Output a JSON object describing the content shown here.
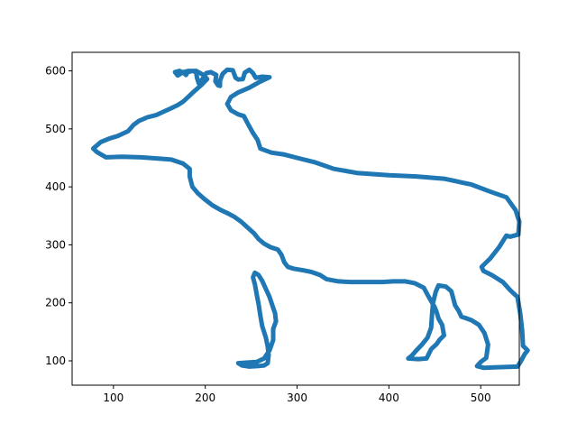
{
  "chart_data": {
    "type": "scatter",
    "title": "",
    "xlabel": "",
    "ylabel": "",
    "xlim": [
      55,
      542
    ],
    "ylim": [
      58,
      632
    ],
    "xticks": [
      100,
      200,
      300,
      400,
      500
    ],
    "yticks": [
      100,
      200,
      300,
      400,
      500,
      600
    ],
    "grid": false,
    "legend": "none",
    "series": [
      {
        "color": "#1f77b4",
        "closed": true,
        "points": [
          [
            170,
            592
          ],
          [
            167,
            598
          ],
          [
            172,
            600
          ],
          [
            176,
            597
          ],
          [
            179,
            593
          ],
          [
            181,
            598
          ],
          [
            186,
            600
          ],
          [
            190,
            598
          ],
          [
            191,
            588
          ],
          [
            193,
            578
          ],
          [
            197,
            586
          ],
          [
            201,
            596
          ],
          [
            206,
            598
          ],
          [
            212,
            593
          ],
          [
            211,
            582
          ],
          [
            214,
            575
          ],
          [
            216,
            574
          ],
          [
            216,
            583
          ],
          [
            219,
            595
          ],
          [
            224,
            602
          ],
          [
            230,
            601
          ],
          [
            233,
            588
          ],
          [
            236,
            585
          ],
          [
            241,
            586
          ],
          [
            243,
            597
          ],
          [
            248,
            602
          ],
          [
            252,
            596
          ],
          [
            255,
            588
          ],
          [
            262,
            590
          ],
          [
            270,
            589
          ],
          [
            258,
            580
          ],
          [
            248,
            571
          ],
          [
            236,
            563
          ],
          [
            228,
            555
          ],
          [
            224,
            543
          ],
          [
            228,
            532
          ],
          [
            236,
            525
          ],
          [
            242,
            522
          ],
          [
            246,
            510
          ],
          [
            252,
            493
          ],
          [
            257,
            481
          ],
          [
            260,
            466
          ],
          [
            272,
            459
          ],
          [
            285,
            456
          ],
          [
            300,
            450
          ],
          [
            320,
            442
          ],
          [
            340,
            431
          ],
          [
            365,
            424
          ],
          [
            400,
            420
          ],
          [
            430,
            418
          ],
          [
            460,
            414
          ],
          [
            490,
            404
          ],
          [
            510,
            392
          ],
          [
            528,
            382
          ],
          [
            538,
            360
          ],
          [
            542,
            340
          ],
          [
            541,
            318
          ],
          [
            532,
            314
          ],
          [
            528,
            316
          ],
          [
            520,
            296
          ],
          [
            510,
            276
          ],
          [
            501,
            262
          ],
          [
            503,
            255
          ],
          [
            512,
            248
          ],
          [
            524,
            236
          ],
          [
            532,
            222
          ],
          [
            540,
            210
          ],
          [
            543,
            182
          ],
          [
            545,
            154
          ],
          [
            546,
            126
          ],
          [
            551,
            118
          ],
          [
            548,
            112
          ],
          [
            544,
            100
          ],
          [
            540,
            90
          ],
          [
            518,
            89
          ],
          [
            503,
            88
          ],
          [
            496,
            91
          ],
          [
            500,
            98
          ],
          [
            506,
            105
          ],
          [
            508,
            128
          ],
          [
            504,
            148
          ],
          [
            498,
            162
          ],
          [
            490,
            170
          ],
          [
            483,
            174
          ],
          [
            479,
            176
          ],
          [
            476,
            186
          ],
          [
            472,
            196
          ],
          [
            470,
            208
          ],
          [
            468,
            220
          ],
          [
            462,
            228
          ],
          [
            454,
            230
          ],
          [
            451,
            219
          ],
          [
            448,
            200
          ],
          [
            447,
            180
          ],
          [
            446,
            157
          ],
          [
            442,
            140
          ],
          [
            436,
            128
          ],
          [
            430,
            118
          ],
          [
            425,
            109
          ],
          [
            421,
            104
          ],
          [
            432,
            103
          ],
          [
            441,
            104
          ],
          [
            446,
            120
          ],
          [
            452,
            129
          ],
          [
            455,
            136
          ],
          [
            460,
            144
          ],
          [
            458,
            162
          ],
          [
            454,
            173
          ],
          [
            452,
            184
          ],
          [
            450,
            192
          ],
          [
            446,
            203
          ],
          [
            442,
            214
          ],
          [
            438,
            226
          ],
          [
            428,
            234
          ],
          [
            418,
            237
          ],
          [
            405,
            237
          ],
          [
            393,
            236
          ],
          [
            381,
            236
          ],
          [
            370,
            236
          ],
          [
            358,
            236
          ],
          [
            345,
            237
          ],
          [
            332,
            241
          ],
          [
            325,
            248
          ],
          [
            316,
            253
          ],
          [
            307,
            256
          ],
          [
            296,
            259
          ],
          [
            290,
            262
          ],
          [
            286,
            270
          ],
          [
            283,
            283
          ],
          [
            279,
            292
          ],
          [
            271,
            296
          ],
          [
            264,
            302
          ],
          [
            258,
            310
          ],
          [
            253,
            320
          ],
          [
            246,
            330
          ],
          [
            239,
            340
          ],
          [
            232,
            348
          ],
          [
            225,
            354
          ],
          [
            217,
            360
          ],
          [
            208,
            368
          ],
          [
            199,
            379
          ],
          [
            192,
            389
          ],
          [
            186,
            400
          ],
          [
            183,
            418
          ],
          [
            183,
            431
          ],
          [
            176,
            440
          ],
          [
            163,
            447
          ],
          [
            147,
            449
          ],
          [
            130,
            451
          ],
          [
            110,
            452
          ],
          [
            92,
            451
          ],
          [
            82,
            460
          ],
          [
            78,
            466
          ],
          [
            86,
            477
          ],
          [
            95,
            483
          ],
          [
            105,
            488
          ],
          [
            116,
            496
          ],
          [
            122,
            507
          ],
          [
            128,
            514
          ],
          [
            137,
            520
          ],
          [
            147,
            524
          ],
          [
            155,
            530
          ],
          [
            162,
            535
          ],
          [
            170,
            541
          ],
          [
            176,
            547
          ],
          [
            182,
            556
          ],
          [
            188,
            565
          ],
          [
            196,
            576
          ],
          [
            202,
            586
          ],
          [
            198,
            593
          ],
          [
            190,
            600
          ],
          [
            182,
            600
          ],
          [
            176,
            598
          ]
        ]
      },
      {
        "color": "#1f77b4",
        "closed": true,
        "points": [
          [
            236,
            96
          ],
          [
            240,
            92
          ],
          [
            248,
            90
          ],
          [
            258,
            91
          ],
          [
            264,
            92
          ],
          [
            268,
            96
          ],
          [
            269,
            110
          ],
          [
            268,
            125
          ],
          [
            266,
            140
          ],
          [
            262,
            160
          ],
          [
            260,
            178
          ],
          [
            258,
            198
          ],
          [
            256,
            215
          ],
          [
            254,
            232
          ],
          [
            252,
            244
          ],
          [
            254,
            252
          ],
          [
            258,
            248
          ],
          [
            262,
            238
          ],
          [
            266,
            224
          ],
          [
            270,
            210
          ],
          [
            273,
            196
          ],
          [
            276,
            182
          ],
          [
            277,
            168
          ],
          [
            274,
            155
          ],
          [
            274,
            136
          ],
          [
            270,
            118
          ],
          [
            264,
            104
          ],
          [
            256,
            98
          ],
          [
            246,
            97
          ]
        ]
      }
    ]
  }
}
